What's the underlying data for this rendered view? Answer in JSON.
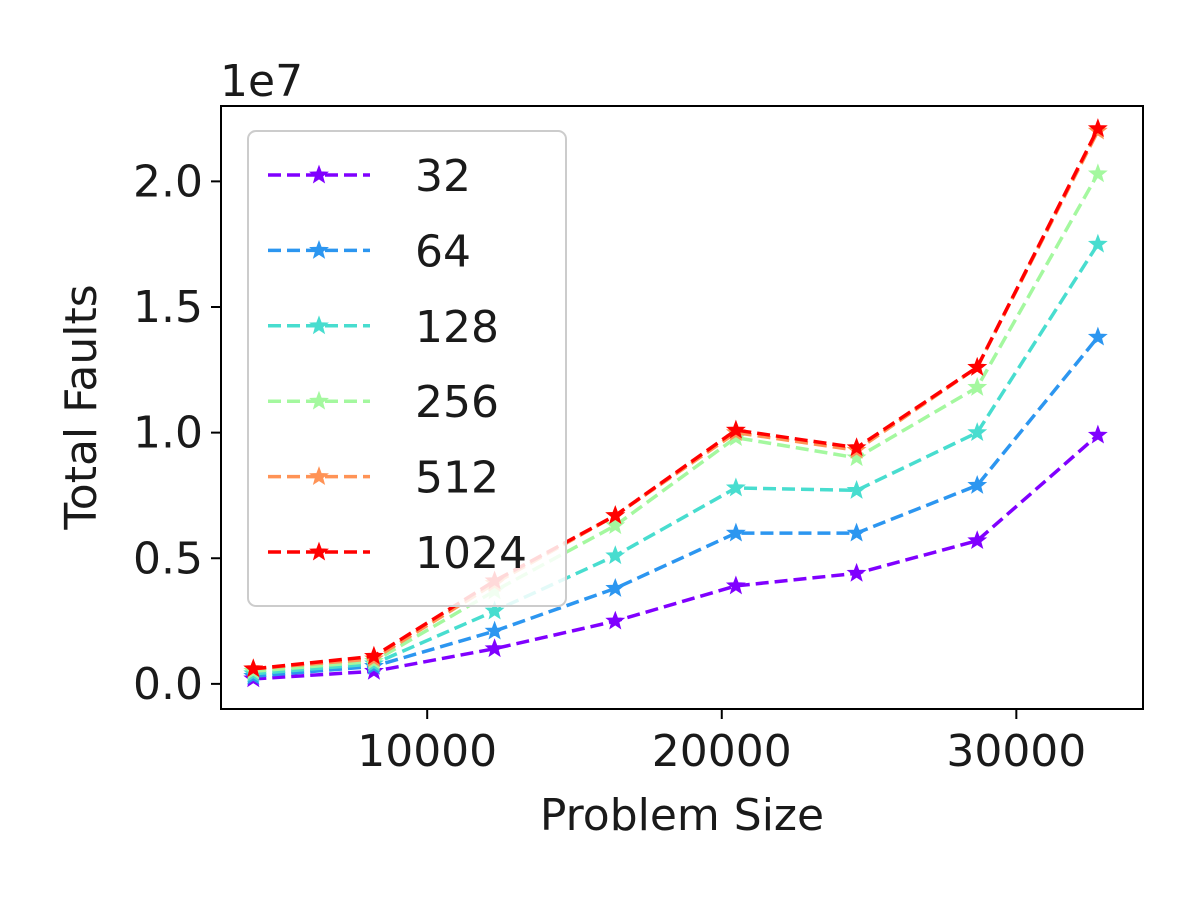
{
  "chart_data": {
    "type": "line",
    "title": "",
    "xlabel": "Problem Size",
    "ylabel": "Total Faults",
    "y_multiplier_label": "1e7",
    "x": [
      4096,
      8192,
      12288,
      16384,
      20480,
      24576,
      28672,
      32768
    ],
    "xlim": [
      3000,
      34300
    ],
    "ylim": [
      -0.1,
      2.3
    ],
    "x_ticks": [
      10000,
      20000,
      30000
    ],
    "x_tick_labels": [
      "10000",
      "20000",
      "30000"
    ],
    "y_ticks": [
      0.0,
      0.5,
      1.0,
      1.5,
      2.0
    ],
    "y_tick_labels": [
      "0.0",
      "0.5",
      "1.0",
      "1.5",
      "2.0"
    ],
    "legend_position": "upper-left",
    "grid": false,
    "series": [
      {
        "name": "32",
        "color": "#8000ff",
        "values": [
          0.02,
          0.05,
          0.14,
          0.25,
          0.39,
          0.44,
          0.57,
          0.99
        ]
      },
      {
        "name": "64",
        "color": "#2c96f0",
        "values": [
          0.03,
          0.07,
          0.21,
          0.38,
          0.6,
          0.6,
          0.79,
          1.38
        ]
      },
      {
        "name": "128",
        "color": "#48ddcf",
        "values": [
          0.04,
          0.08,
          0.29,
          0.51,
          0.78,
          0.77,
          1.0,
          1.75
        ]
      },
      {
        "name": "256",
        "color": "#a4f89f",
        "values": [
          0.05,
          0.09,
          0.37,
          0.63,
          0.98,
          0.9,
          1.18,
          2.03
        ]
      },
      {
        "name": "512",
        "color": "#ff9356",
        "values": [
          0.06,
          0.1,
          0.4,
          0.67,
          1.0,
          0.93,
          1.26,
          2.2
        ]
      },
      {
        "name": "1024",
        "color": "#ff0000",
        "values": [
          0.06,
          0.11,
          0.41,
          0.67,
          1.01,
          0.94,
          1.26,
          2.21
        ]
      }
    ]
  }
}
